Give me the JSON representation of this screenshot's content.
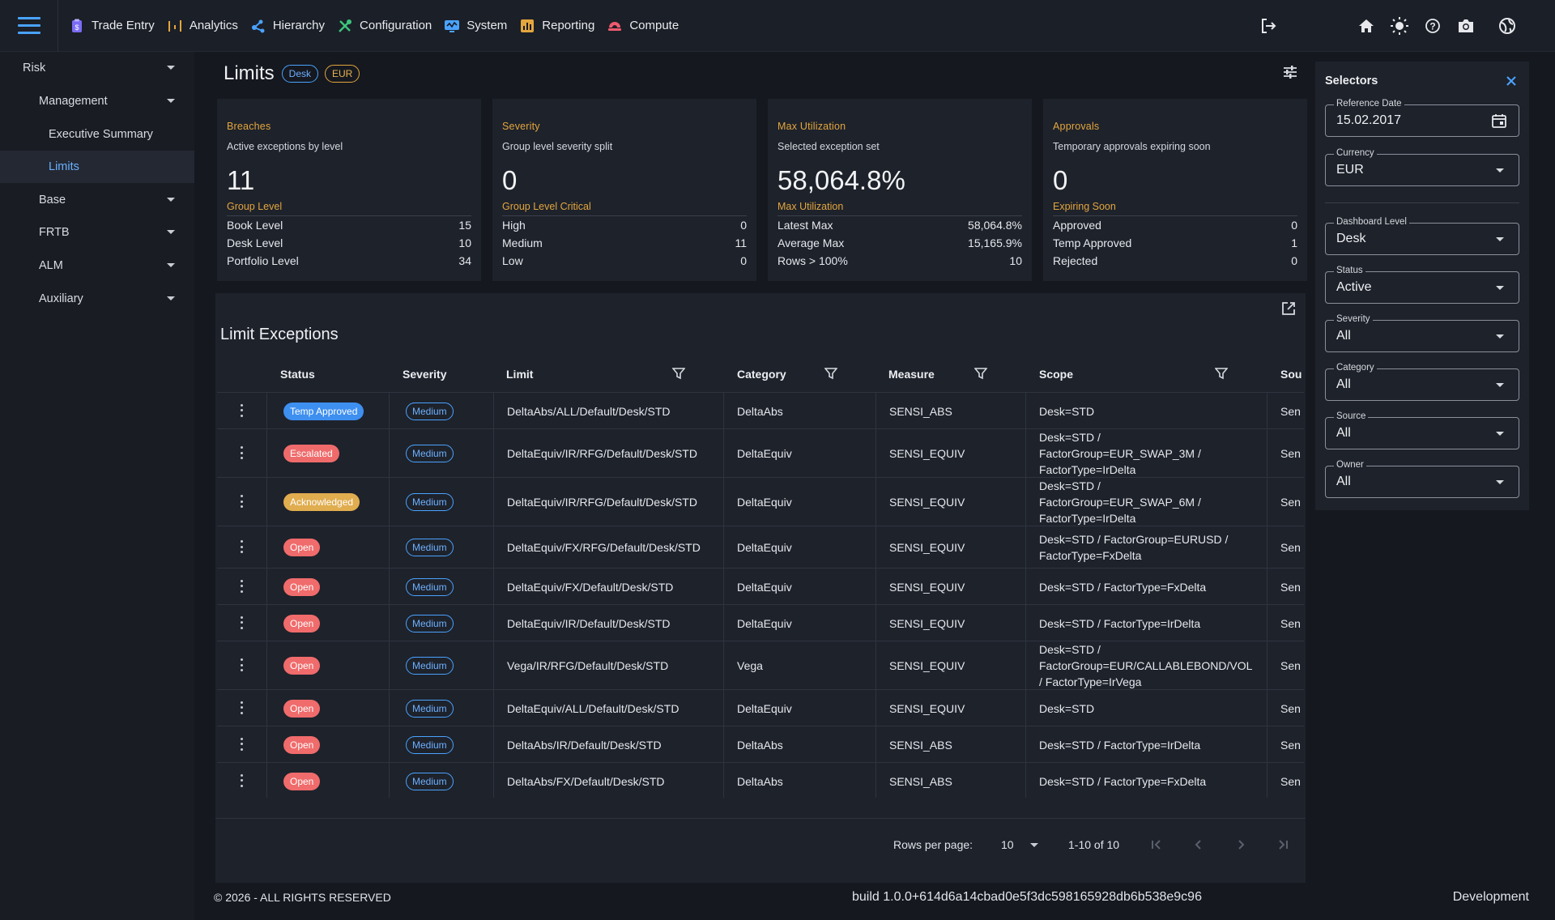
{
  "nav": {
    "items": [
      {
        "label": "Trade Entry",
        "icon": "clipboard-icon",
        "color": "#7b6cf6"
      },
      {
        "label": "Analytics",
        "icon": "analytics-icon",
        "color": "#e3a63e"
      },
      {
        "label": "Hierarchy",
        "icon": "hierarchy-icon",
        "color": "#4aa3ff"
      },
      {
        "label": "Configuration",
        "icon": "tools-icon",
        "color": "#3cc47c"
      },
      {
        "label": "System",
        "icon": "system-icon",
        "color": "#4aa3ff"
      },
      {
        "label": "Reporting",
        "icon": "report-icon",
        "color": "#e3a63e"
      },
      {
        "label": "Compute",
        "icon": "compute-icon",
        "color": "#ef5a6f"
      }
    ]
  },
  "sidebar": {
    "risk": "Risk",
    "management": "Management",
    "executive_summary": "Executive Summary",
    "limits": "Limits",
    "base": "Base",
    "frtb": "FRTB",
    "alm": "ALM",
    "auxiliary": "Auxiliary"
  },
  "page": {
    "title": "Limits",
    "chip_desk": "Desk",
    "chip_eur": "EUR"
  },
  "cards": [
    {
      "title": "Breaches",
      "subtitle": "Active exceptions by level",
      "big": "11",
      "big_label": "Group Level",
      "rows": [
        {
          "label": "Book Level",
          "value": "15"
        },
        {
          "label": "Desk Level",
          "value": "10"
        },
        {
          "label": "Portfolio Level",
          "value": "34"
        }
      ]
    },
    {
      "title": "Severity",
      "subtitle": "Group level severity split",
      "big": "0",
      "big_label": "Group Level Critical",
      "rows": [
        {
          "label": "High",
          "value": "0"
        },
        {
          "label": "Medium",
          "value": "11"
        },
        {
          "label": "Low",
          "value": "0"
        }
      ]
    },
    {
      "title": "Max Utilization",
      "subtitle": "Selected exception set",
      "big": "58,064.8%",
      "big_label": "Max Utilization",
      "rows": [
        {
          "label": "Latest Max",
          "value": "58,064.8%"
        },
        {
          "label": "Average Max",
          "value": "15,165.9%"
        },
        {
          "label": "Rows > 100%",
          "value": "10"
        }
      ]
    },
    {
      "title": "Approvals",
      "subtitle": "Temporary approvals expiring soon",
      "big": "0",
      "big_label": "Expiring Soon",
      "rows": [
        {
          "label": "Approved",
          "value": "0"
        },
        {
          "label": "Temp Approved",
          "value": "1"
        },
        {
          "label": "Rejected",
          "value": "0"
        }
      ]
    }
  ],
  "table": {
    "title": "Limit Exceptions",
    "columns": {
      "status": "Status",
      "severity": "Severity",
      "limit": "Limit",
      "category": "Category",
      "measure": "Measure",
      "scope": "Scope",
      "source": "Sou"
    },
    "status_colors": {
      "Temp Approved": "#3d8ff0",
      "Escalated": "#ef6b6b",
      "Acknowledged": "#e0ad4f",
      "Open": "#f06b6b"
    },
    "rows": [
      {
        "status": "Temp Approved",
        "severity": "Medium",
        "limit": "DeltaAbs/ALL/Default/Desk/STD",
        "category": "DeltaAbs",
        "measure": "SENSI_ABS",
        "scope": [
          "Desk=STD"
        ],
        "source": "Sen"
      },
      {
        "status": "Escalated",
        "severity": "Medium",
        "limit": "DeltaEquiv/IR/RFG/Default/Desk/STD",
        "category": "DeltaEquiv",
        "measure": "SENSI_EQUIV",
        "scope": [
          "Desk=STD /",
          "FactorGroup=EUR_SWAP_3M /",
          "FactorType=IrDelta"
        ],
        "source": "Sen"
      },
      {
        "status": "Acknowledged",
        "severity": "Medium",
        "limit": "DeltaEquiv/IR/RFG/Default/Desk/STD",
        "category": "DeltaEquiv",
        "measure": "SENSI_EQUIV",
        "scope": [
          "Desk=STD /",
          "FactorGroup=EUR_SWAP_6M /",
          "FactorType=IrDelta"
        ],
        "source": "Sen"
      },
      {
        "status": "Open",
        "severity": "Medium",
        "limit": "DeltaEquiv/FX/RFG/Default/Desk/STD",
        "category": "DeltaEquiv",
        "measure": "SENSI_EQUIV",
        "scope": [
          "Desk=STD / FactorGroup=EURUSD /",
          "FactorType=FxDelta"
        ],
        "source": "Sen"
      },
      {
        "status": "Open",
        "severity": "Medium",
        "limit": "DeltaEquiv/FX/Default/Desk/STD",
        "category": "DeltaEquiv",
        "measure": "SENSI_EQUIV",
        "scope": [
          "Desk=STD / FactorType=FxDelta"
        ],
        "source": "Sen"
      },
      {
        "status": "Open",
        "severity": "Medium",
        "limit": "DeltaEquiv/IR/Default/Desk/STD",
        "category": "DeltaEquiv",
        "measure": "SENSI_EQUIV",
        "scope": [
          "Desk=STD / FactorType=IrDelta"
        ],
        "source": "Sen"
      },
      {
        "status": "Open",
        "severity": "Medium",
        "limit": "Vega/IR/RFG/Default/Desk/STD",
        "category": "Vega",
        "measure": "SENSI_EQUIV",
        "scope": [
          "Desk=STD /",
          "FactorGroup=EUR/CALLABLEBOND/VOL",
          "/ FactorType=IrVega"
        ],
        "source": "Sen"
      },
      {
        "status": "Open",
        "severity": "Medium",
        "limit": "DeltaEquiv/ALL/Default/Desk/STD",
        "category": "DeltaEquiv",
        "measure": "SENSI_EQUIV",
        "scope": [
          "Desk=STD"
        ],
        "source": "Sen"
      },
      {
        "status": "Open",
        "severity": "Medium",
        "limit": "DeltaAbs/IR/Default/Desk/STD",
        "category": "DeltaAbs",
        "measure": "SENSI_ABS",
        "scope": [
          "Desk=STD / FactorType=IrDelta"
        ],
        "source": "Sen"
      },
      {
        "status": "Open",
        "severity": "Medium",
        "limit": "DeltaAbs/FX/Default/Desk/STD",
        "category": "DeltaAbs",
        "measure": "SENSI_ABS",
        "scope": [
          "Desk=STD / FactorType=FxDelta"
        ],
        "source": "Sen"
      }
    ],
    "pagination": {
      "rows_per_page_label": "Rows per page:",
      "rows_per_page": "10",
      "range": "1-10 of 10"
    }
  },
  "selectors": {
    "title": "Selectors",
    "reference_date": {
      "label": "Reference Date",
      "value": "15.02.2017"
    },
    "currency": {
      "label": "Currency",
      "value": "EUR"
    },
    "dashboard_level": {
      "label": "Dashboard Level",
      "value": "Desk"
    },
    "status": {
      "label": "Status",
      "value": "Active"
    },
    "severity": {
      "label": "Severity",
      "value": "All"
    },
    "category": {
      "label": "Category",
      "value": "All"
    },
    "source": {
      "label": "Source",
      "value": "All"
    },
    "owner": {
      "label": "Owner",
      "value": "All"
    }
  },
  "footer": {
    "copyright": "© 2026 - ALL RIGHTS RESERVED",
    "build": "build 1.0.0+614d6a14cbad0e5f3dc598165928db6b538e9c96",
    "environment": "Development"
  }
}
